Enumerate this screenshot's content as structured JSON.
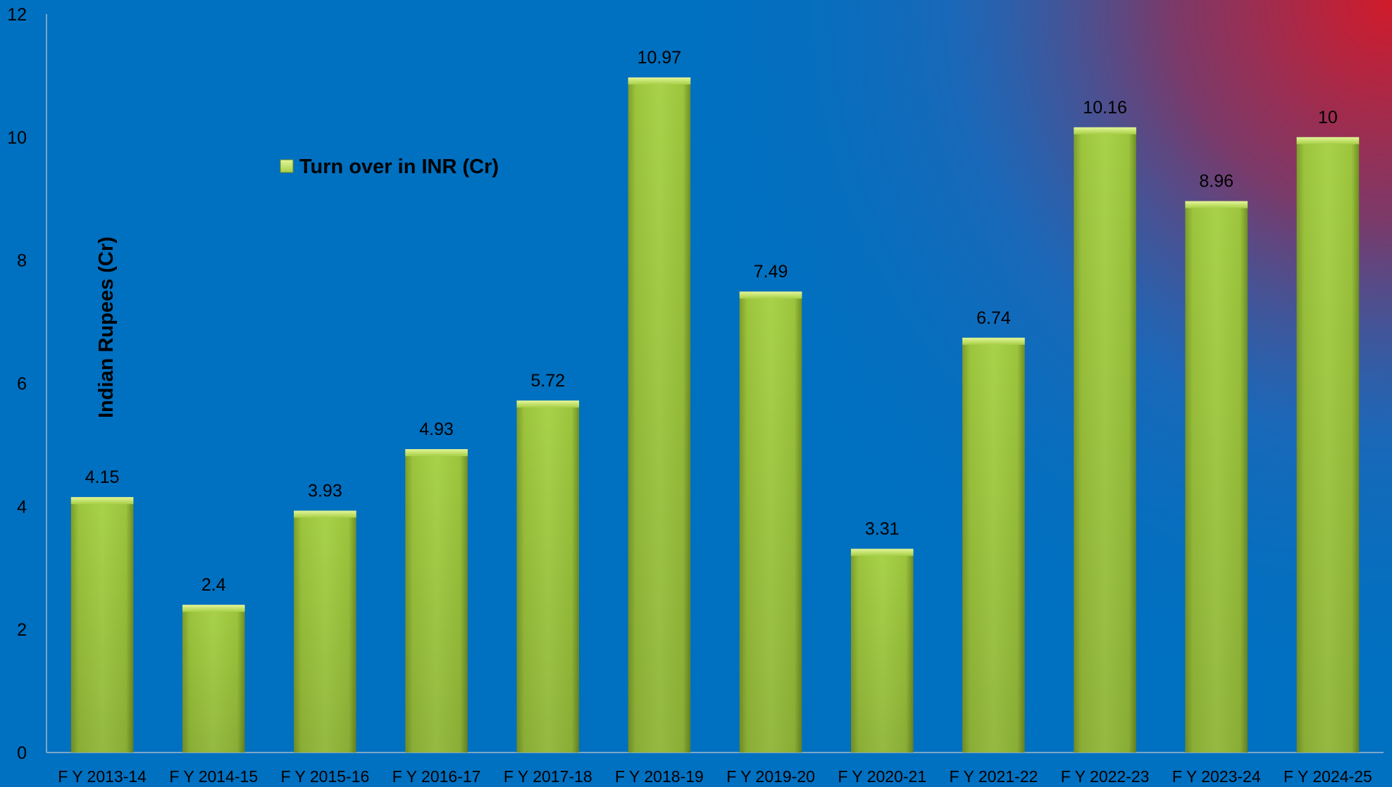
{
  "chart_data": {
    "type": "bar",
    "categories": [
      "F Y 2013-14",
      "F Y 2014-15",
      "F Y 2015-16",
      "F Y 2016-17",
      "F Y 2017-18",
      "F Y 2018-19",
      "F Y 2019-20",
      "F Y 2020-21",
      "F Y 2021-22",
      "F Y 2022-23",
      "F Y 2023-24",
      "F Y 2024-25"
    ],
    "series": [
      {
        "name": "Turn over in INR (Cr)",
        "values": [
          4.15,
          2.4,
          3.93,
          4.93,
          5.72,
          10.97,
          7.49,
          3.31,
          6.74,
          10.16,
          8.96,
          10
        ]
      }
    ],
    "value_labels": [
      "4.15",
      "2.4",
      "3.93",
      "4.93",
      "5.72",
      "10.97",
      "7.49",
      "3.31",
      "6.74",
      "10.16",
      "8.96",
      "10"
    ],
    "ylabel": "Indian Rupees (Cr)",
    "ylim": [
      0,
      12
    ],
    "yticks": [
      "0",
      "2",
      "4",
      "6",
      "8",
      "10",
      "12"
    ],
    "grid": false,
    "legend_position": "top-left",
    "colors": {
      "background": "#0070c0",
      "glow": "#d11a2a",
      "bar": "#9ccc3c",
      "text": "#000000"
    }
  }
}
